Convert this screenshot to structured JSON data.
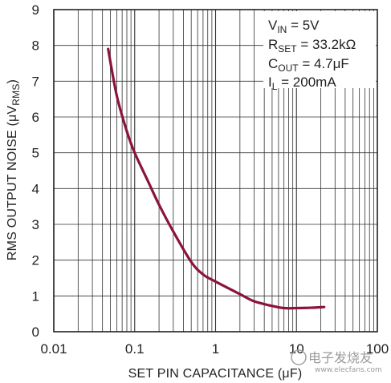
{
  "chart_data": {
    "type": "line",
    "title": "",
    "xlabel": "SET PIN CAPACITANCE (μF)",
    "ylabel": "RMS OUTPUT NOISE (μV",
    "ylabel_sub": "RMS",
    "ylabel_close": ")",
    "x_scale": "log",
    "xlim": [
      0.01,
      100
    ],
    "ylim": [
      0,
      9
    ],
    "x_ticks": [
      0.01,
      0.1,
      1,
      10,
      100
    ],
    "x_tick_labels": [
      "0.01",
      "0.1",
      "1",
      "10",
      "100"
    ],
    "y_ticks": [
      0,
      1,
      2,
      3,
      4,
      5,
      6,
      7,
      8,
      9
    ],
    "y_tick_labels": [
      "0",
      "1",
      "2",
      "3",
      "4",
      "5",
      "6",
      "7",
      "8",
      "9"
    ],
    "grid": true,
    "line_color": "#8a1538",
    "series": [
      {
        "x": [
          0.047,
          0.06,
          0.08,
          0.1,
          0.15,
          0.2,
          0.3,
          0.5,
          0.7,
          1,
          2,
          3,
          5,
          7,
          10,
          15,
          22
        ],
        "values": [
          7.9,
          6.6,
          5.6,
          5.0,
          4.15,
          3.55,
          2.8,
          1.95,
          1.6,
          1.4,
          1.05,
          0.85,
          0.72,
          0.66,
          0.66,
          0.67,
          0.69
        ]
      }
    ],
    "annotations": [
      {
        "main": "V",
        "sub": "IN",
        "rest": " = 5V"
      },
      {
        "main": "R",
        "sub": "SET",
        "rest": " = 33.2kΩ"
      },
      {
        "main": "C",
        "sub": "OUT",
        "rest": " = 4.7μF"
      },
      {
        "main": "I",
        "sub": "L",
        "rest": " = 200mA"
      }
    ]
  },
  "watermark": {
    "text": "电子发烧友",
    "url": "www.elecfans.com"
  }
}
